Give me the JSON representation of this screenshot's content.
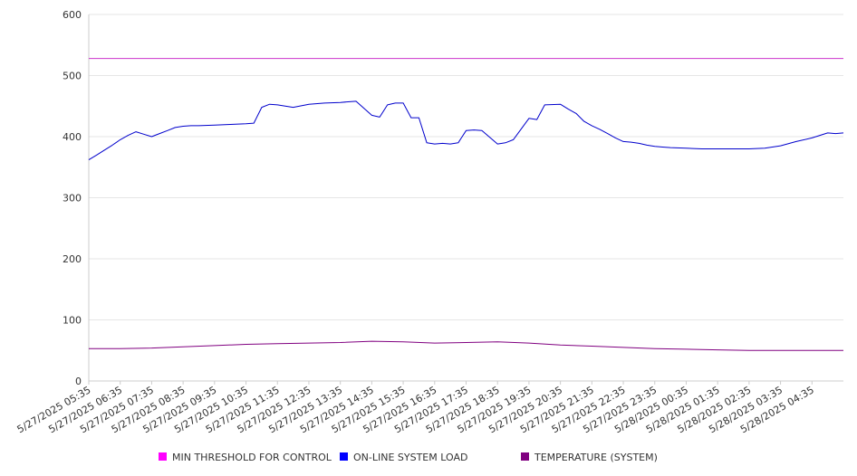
{
  "chart_data": {
    "type": "line",
    "title": "",
    "xlabel": "",
    "ylabel": "",
    "ylim": [
      0,
      600
    ],
    "y_ticks": [
      "0",
      "100",
      "200",
      "300",
      "400",
      "500",
      "600"
    ],
    "x_tick_labels": [
      "5/27/2025 05:35",
      "5/27/2025 06:35",
      "5/27/2025 07:35",
      "5/27/2025 08:35",
      "5/27/2025 09:35",
      "5/27/2025 10:35",
      "5/27/2025 11:35",
      "5/27/2025 12:35",
      "5/27/2025 13:35",
      "5/27/2025 14:35",
      "5/27/2025 15:35",
      "5/27/2025 16:35",
      "5/27/2025 17:35",
      "5/27/2025 18:35",
      "5/27/2025 19:35",
      "5/27/2025 20:35",
      "5/27/2025 21:35",
      "5/27/2025 22:35",
      "5/27/2025 23:35",
      "5/28/2025 00:35",
      "5/28/2025 01:35",
      "5/28/2025 02:35",
      "5/28/2025 03:35",
      "5/28/2025 04:35"
    ],
    "x_range_hours": [
      0,
      24
    ],
    "grid": true,
    "legend_position": "bottom",
    "series": [
      {
        "name": "MIN THRESHOLD FOR CONTROL",
        "color": "#cc33cc",
        "legend_color": "#ff00ff",
        "x": [
          0,
          24
        ],
        "values": [
          528,
          528
        ]
      },
      {
        "name": "ON-LINE SYSTEM LOAD",
        "color": "#0000cc",
        "legend_color": "#0000ff",
        "x": [
          0,
          0.25,
          0.5,
          0.75,
          1,
          1.25,
          1.5,
          1.75,
          2,
          2.25,
          2.5,
          2.75,
          3,
          3.25,
          3.5,
          4,
          4.5,
          5,
          5.25,
          5.5,
          5.75,
          6,
          6.25,
          6.5,
          7,
          7.5,
          8,
          8.25,
          8.5,
          9,
          9.25,
          9.5,
          9.75,
          10,
          10.25,
          10.5,
          10.75,
          11,
          11.25,
          11.5,
          11.75,
          12,
          12.25,
          12.5,
          13,
          13.25,
          13.5,
          14,
          14.25,
          14.5,
          15,
          15.25,
          15.5,
          15.75,
          16,
          16.25,
          16.5,
          16.75,
          17,
          17.25,
          17.5,
          17.75,
          18,
          18.25,
          18.5,
          19,
          19.5,
          20,
          20.5,
          21,
          21.5,
          22,
          22.5,
          23,
          23.25,
          23.5,
          23.75,
          24
        ],
        "values": [
          362,
          370,
          378,
          386,
          395,
          402,
          408,
          404,
          400,
          405,
          410,
          415,
          417,
          418,
          418,
          419,
          420,
          421,
          422,
          448,
          453,
          452,
          450,
          448,
          453,
          455,
          456,
          457,
          458,
          435,
          432,
          452,
          455,
          455,
          431,
          431,
          390,
          388,
          389,
          388,
          390,
          410,
          411,
          410,
          388,
          390,
          395,
          430,
          428,
          452,
          453,
          445,
          438,
          425,
          418,
          412,
          405,
          398,
          392,
          391,
          389,
          386,
          384,
          383,
          382,
          381,
          380,
          380,
          380,
          380,
          381,
          385,
          392,
          398,
          402,
          406,
          405,
          406
        ]
      },
      {
        "name": "TEMPERATURE (SYSTEM)",
        "color": "#800080",
        "legend_color": "#800080",
        "x": [
          0,
          1,
          2,
          3,
          4,
          5,
          6,
          7,
          8,
          9,
          10,
          11,
          12,
          13,
          14,
          15,
          16,
          17,
          18,
          19,
          20,
          21,
          22,
          23,
          24
        ],
        "values": [
          53,
          53,
          54,
          56,
          58,
          60,
          61,
          62,
          63,
          65,
          64,
          62,
          63,
          64,
          62,
          59,
          57,
          55,
          53,
          52,
          51,
          50,
          50,
          50,
          50
        ]
      }
    ]
  }
}
